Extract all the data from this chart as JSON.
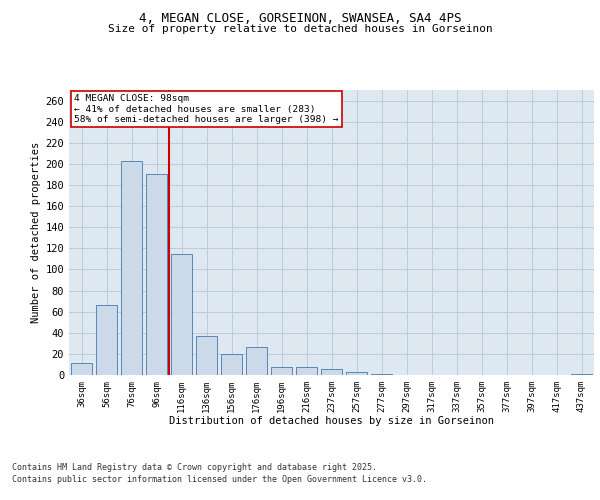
{
  "title_line1": "4, MEGAN CLOSE, GORSEINON, SWANSEA, SA4 4PS",
  "title_line2": "Size of property relative to detached houses in Gorseinon",
  "xlabel": "Distribution of detached houses by size in Gorseinon",
  "ylabel": "Number of detached properties",
  "categories": [
    "36sqm",
    "56sqm",
    "76sqm",
    "96sqm",
    "116sqm",
    "136sqm",
    "156sqm",
    "176sqm",
    "196sqm",
    "216sqm",
    "237sqm",
    "257sqm",
    "277sqm",
    "297sqm",
    "317sqm",
    "337sqm",
    "357sqm",
    "377sqm",
    "397sqm",
    "417sqm",
    "437sqm"
  ],
  "values": [
    11,
    66,
    203,
    190,
    115,
    37,
    20,
    27,
    8,
    8,
    6,
    3,
    1,
    0,
    0,
    0,
    0,
    0,
    0,
    0,
    1
  ],
  "bar_color": "#ccd9e8",
  "bar_edge_color": "#4477aa",
  "grid_color": "#bbccdd",
  "vline_color": "#cc0000",
  "annotation_text": "4 MEGAN CLOSE: 98sqm\n← 41% of detached houses are smaller (283)\n58% of semi-detached houses are larger (398) →",
  "annotation_box_color": "#ffffff",
  "annotation_box_edge": "#cc0000",
  "footer_line1": "Contains HM Land Registry data © Crown copyright and database right 2025.",
  "footer_line2": "Contains public sector information licensed under the Open Government Licence v3.0.",
  "ylim": [
    0,
    270
  ],
  "yticks": [
    0,
    20,
    40,
    60,
    80,
    100,
    120,
    140,
    160,
    180,
    200,
    220,
    240,
    260
  ],
  "background_color": "#dde8f0",
  "fig_bg": "#ffffff"
}
